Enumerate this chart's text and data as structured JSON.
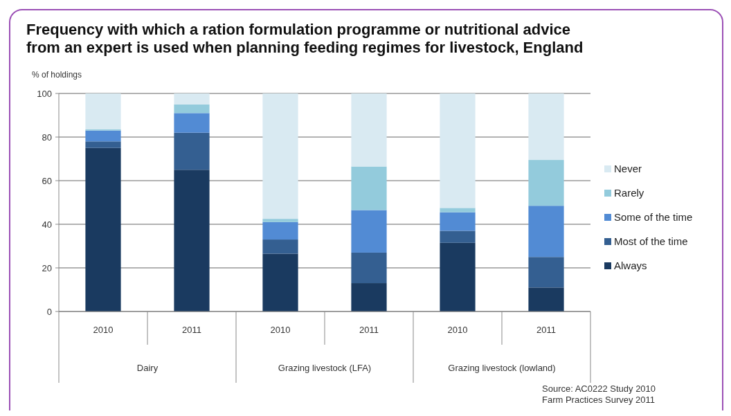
{
  "chart_data": {
    "type": "bar",
    "title": "Frequency with which a ration formulation programme or nutritional advice from an expert is used when planning feeding regimes for livestock, England",
    "ylabel": "% of holdings",
    "categories": [
      "2010",
      "2011",
      "2010",
      "2011",
      "2010",
      "2011"
    ],
    "stacked": true,
    "ylim": [
      0,
      100
    ],
    "yticks": [
      0,
      20,
      40,
      60,
      80,
      100
    ],
    "grid": "y",
    "legend": "right",
    "series": [
      {
        "name": "Always",
        "color": "#1a3a60",
        "values": [
          75,
          65,
          26.5,
          13,
          31.5,
          11
        ]
      },
      {
        "name": "Most of the time",
        "color": "#345f91",
        "values": [
          3,
          17,
          6.5,
          14,
          5.5,
          14
        ]
      },
      {
        "name": "Some of the time",
        "color": "#528bd4",
        "values": [
          5,
          9,
          8,
          19.5,
          8.5,
          23.5
        ]
      },
      {
        "name": "Rarely",
        "color": "#93cbdc",
        "values": [
          0.5,
          4,
          1.5,
          20,
          2,
          21
        ]
      },
      {
        "name": "Never",
        "color": "#d9eaf2",
        "values": [
          16.5,
          5,
          57.5,
          33.5,
          52.5,
          30.5
        ]
      }
    ],
    "annotations": [
      "Dairy",
      "Grazing livestock (LFA)",
      "Grazing livestock (lowland)",
      "Source: AC0222 Study 2010",
      "Farm Practices Survey 2011"
    ]
  }
}
